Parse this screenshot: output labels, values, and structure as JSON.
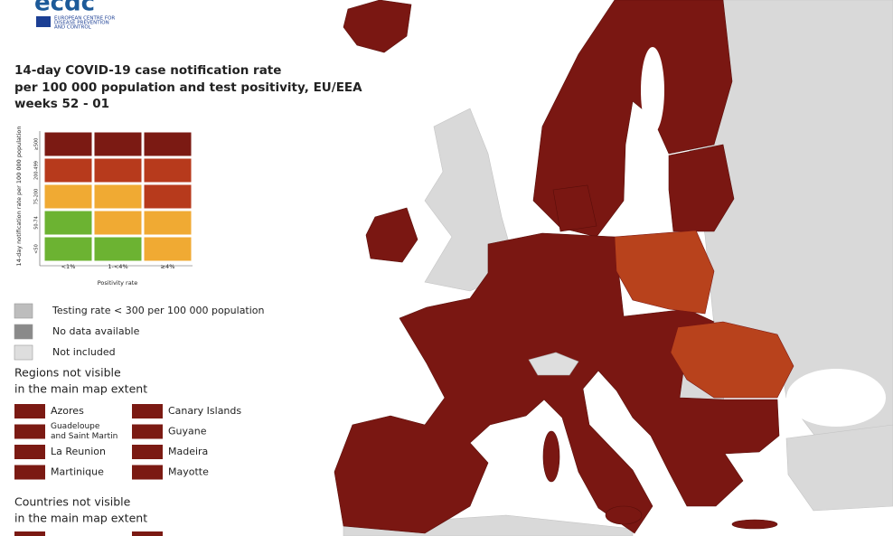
{
  "header": {
    "logo": "ecdc",
    "org": [
      "EUROPEAN CENTRE FOR",
      "DISEASE PREVENTION",
      "AND CONTROL"
    ]
  },
  "title": [
    "14-day COVID-19 case notification rate",
    "per 100 000 population and test positivity, EU/EEA",
    "weeks 52 - 01"
  ],
  "matrix": {
    "y_label": "14-day notification rate per 100 000 population",
    "x_label": "Positivity rate",
    "columns": [
      "<1%",
      "1-<4%",
      "≥4%"
    ],
    "rows": [
      {
        "label": "≥500",
        "colors": [
          "#7b1a13",
          "#7b1a13",
          "#7b1a13"
        ]
      },
      {
        "label": "200-499",
        "colors": [
          "#b73a1c",
          "#b73a1c",
          "#b73a1c"
        ]
      },
      {
        "label": "75-200",
        "colors": [
          "#f0aa33",
          "#f0aa33",
          "#b73a1c"
        ]
      },
      {
        "label": "50-74",
        "colors": [
          "#6cb332",
          "#f0aa33",
          "#f0aa33"
        ]
      },
      {
        "label": "<50",
        "colors": [
          "#6cb332",
          "#6cb332",
          "#f0aa33"
        ]
      }
    ]
  },
  "legend": [
    {
      "label": "Testing rate < 300 per 100 000 population",
      "color": "#bdbdbd"
    },
    {
      "label": "No data available",
      "color": "#8a8a8a"
    },
    {
      "label": "Not included",
      "color": "#dedede"
    }
  ],
  "regions": {
    "heading": [
      "Regions not visible",
      "in the main map extent"
    ],
    "color": "#7b1a13",
    "items": [
      [
        "Azores"
      ],
      [
        "Canary Islands"
      ],
      [
        "Guadeloupe",
        "and Saint Martin"
      ],
      [
        "Guyane"
      ],
      [
        "La Reunion"
      ],
      [
        "Madeira"
      ],
      [
        "Martinique"
      ],
      [
        "Mayotte"
      ]
    ]
  },
  "countries": {
    "heading": [
      "Countries not visible",
      "in the main map extent"
    ],
    "color": "#7b1a13"
  }
}
